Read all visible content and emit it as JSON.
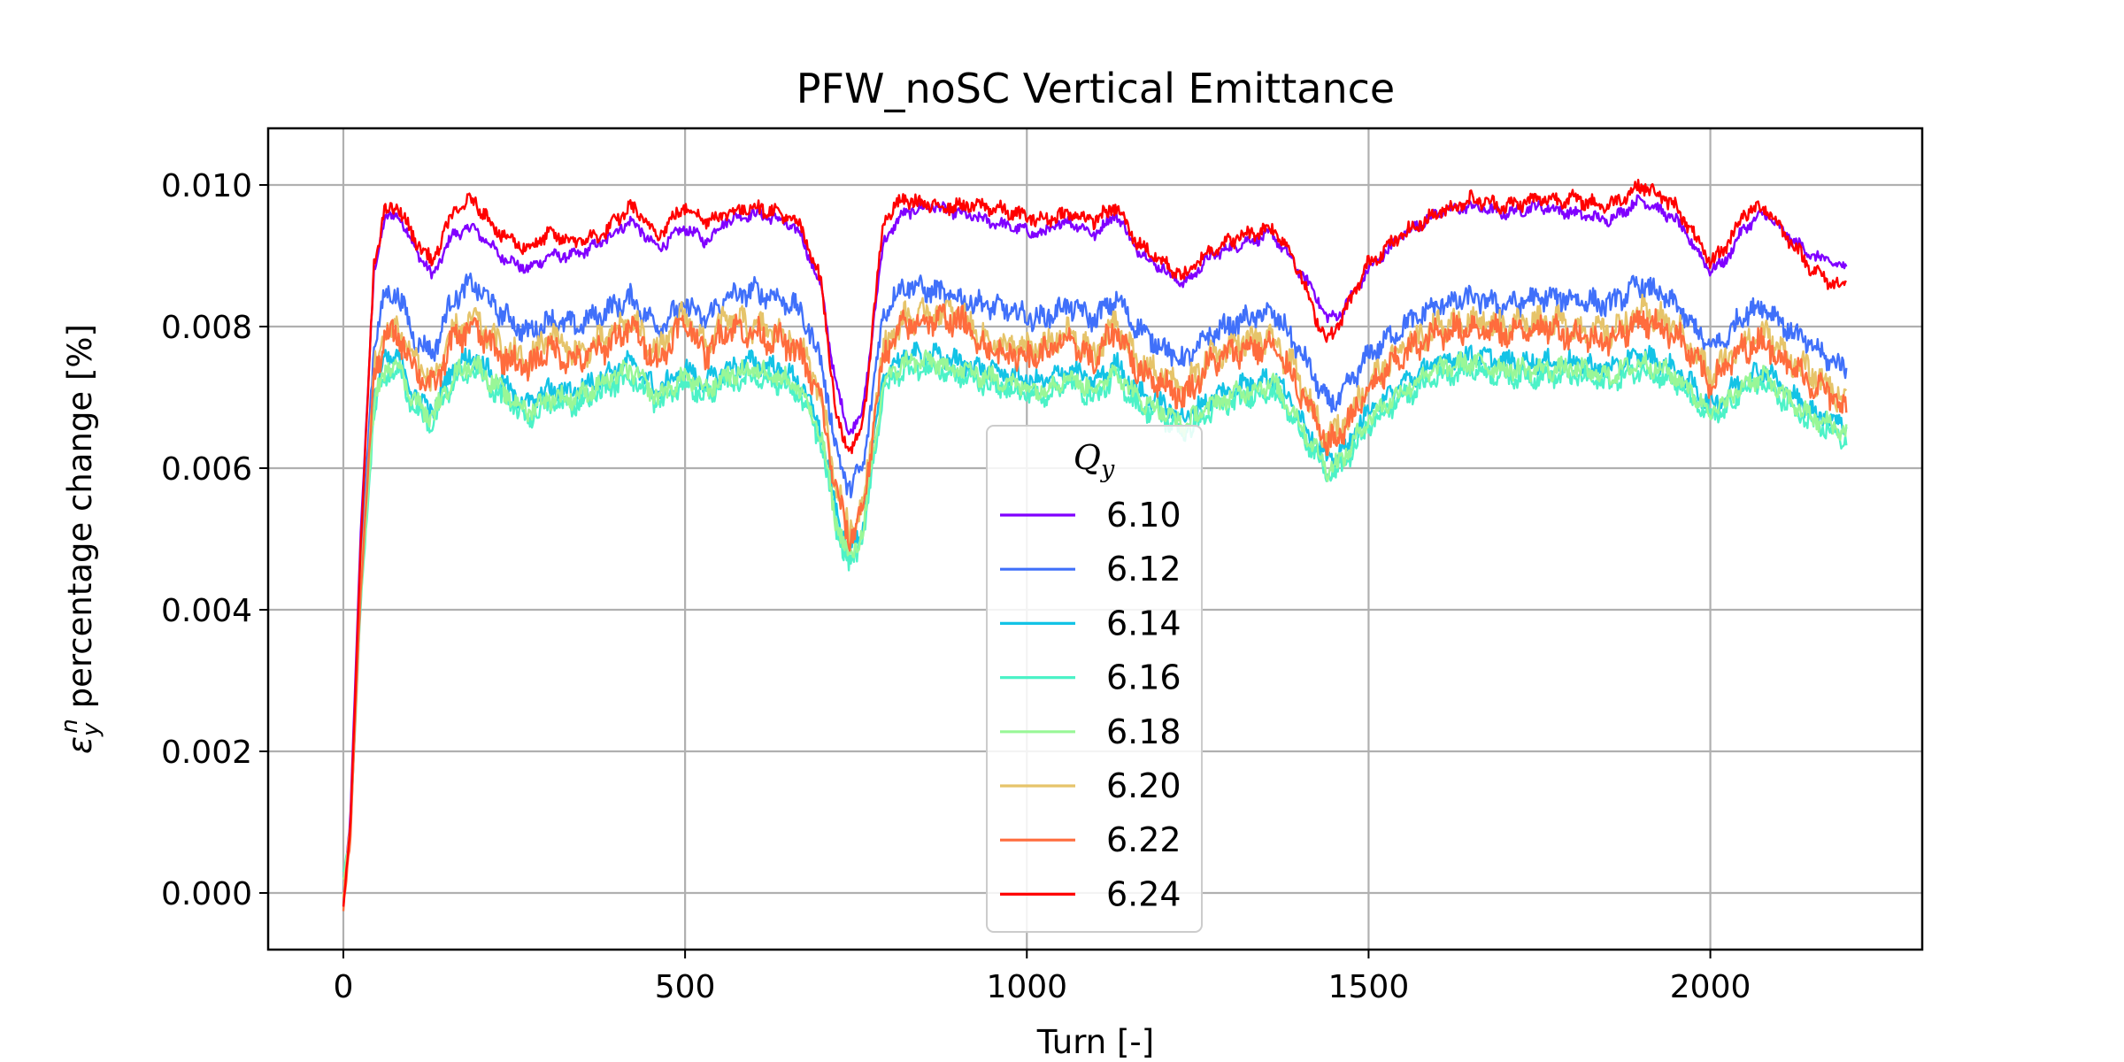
{
  "chart_data": {
    "type": "line",
    "title": "PFW_noSC Vertical Emittance",
    "xlabel": "Turn [-]",
    "ylabel_symbol": "ε",
    "ylabel_sub": "y",
    "ylabel_sup": "n",
    "ylabel_text": " percentage change [%]",
    "xlim": [
      -110,
      2310
    ],
    "ylim": [
      -0.0008,
      0.0108
    ],
    "xticks": [
      0,
      500,
      1000,
      1500,
      2000
    ],
    "xtick_labels": [
      "0",
      "500",
      "1000",
      "1500",
      "2000"
    ],
    "yticks": [
      0.0,
      0.002,
      0.004,
      0.006,
      0.008,
      0.01
    ],
    "ytick_labels": [
      "0.000",
      "0.002",
      "0.004",
      "0.006",
      "0.008",
      "0.010"
    ],
    "grid": true,
    "legend": {
      "title": "Q",
      "title_sub": "y",
      "placement": "lower-center"
    },
    "series": [
      {
        "name": "6.10",
        "color": "#8000ff",
        "noise": 0.00014,
        "x": [
          0,
          10,
          25,
          45,
          60,
          80,
          100,
          130,
          160,
          190,
          230,
          270,
          300,
          340,
          380,
          420,
          460,
          500,
          530,
          560,
          600,
          640,
          670,
          700,
          720,
          740,
          760,
          790,
          820,
          860,
          900,
          940,
          980,
          1020,
          1060,
          1100,
          1130,
          1160,
          1200,
          1230,
          1270,
          1320,
          1360,
          1390,
          1420,
          1440,
          1460,
          1500,
          1550,
          1600,
          1650,
          1700,
          1750,
          1800,
          1850,
          1900,
          1950,
          2000,
          2020,
          2050,
          2080,
          2110,
          2150,
          2180,
          2200
        ],
        "y": [
          0,
          0.001,
          0.005,
          0.0088,
          0.0095,
          0.0096,
          0.0092,
          0.0087,
          0.0093,
          0.0094,
          0.009,
          0.0088,
          0.009,
          0.009,
          0.0092,
          0.0095,
          0.0091,
          0.0094,
          0.0092,
          0.0095,
          0.0096,
          0.0095,
          0.0093,
          0.0085,
          0.0072,
          0.0065,
          0.0068,
          0.0092,
          0.0096,
          0.0097,
          0.0096,
          0.0095,
          0.0094,
          0.0093,
          0.0095,
          0.0093,
          0.0096,
          0.0091,
          0.0088,
          0.0086,
          0.009,
          0.0092,
          0.0093,
          0.0089,
          0.0085,
          0.0081,
          0.0082,
          0.0088,
          0.0093,
          0.0096,
          0.0097,
          0.0096,
          0.0097,
          0.0096,
          0.0095,
          0.0098,
          0.0095,
          0.0088,
          0.0089,
          0.0094,
          0.0096,
          0.0093,
          0.009,
          0.0089,
          0.0088
        ]
      },
      {
        "name": "6.12",
        "color": "#4070fa",
        "noise": 0.00028,
        "x": [
          0,
          10,
          25,
          45,
          60,
          80,
          100,
          130,
          160,
          190,
          230,
          270,
          300,
          340,
          380,
          420,
          460,
          500,
          530,
          560,
          600,
          640,
          670,
          700,
          720,
          740,
          760,
          790,
          820,
          860,
          900,
          940,
          980,
          1020,
          1060,
          1100,
          1130,
          1160,
          1200,
          1230,
          1270,
          1320,
          1360,
          1390,
          1420,
          1440,
          1460,
          1500,
          1550,
          1600,
          1650,
          1700,
          1750,
          1800,
          1850,
          1900,
          1950,
          2000,
          2020,
          2050,
          2080,
          2110,
          2150,
          2180,
          2200
        ],
        "y": [
          0,
          0.0009,
          0.0045,
          0.0078,
          0.0084,
          0.0085,
          0.0079,
          0.0076,
          0.0084,
          0.0086,
          0.0082,
          0.0079,
          0.0081,
          0.008,
          0.0082,
          0.0084,
          0.008,
          0.0083,
          0.0081,
          0.0084,
          0.0085,
          0.0084,
          0.0082,
          0.0075,
          0.0063,
          0.0057,
          0.006,
          0.0082,
          0.0086,
          0.0085,
          0.0084,
          0.0083,
          0.0082,
          0.0081,
          0.0083,
          0.0081,
          0.0084,
          0.008,
          0.0077,
          0.0075,
          0.0079,
          0.0081,
          0.0082,
          0.0078,
          0.0073,
          0.0069,
          0.007,
          0.0076,
          0.008,
          0.0083,
          0.0084,
          0.0083,
          0.0084,
          0.0084,
          0.0083,
          0.0086,
          0.0083,
          0.0077,
          0.0078,
          0.0082,
          0.0083,
          0.008,
          0.0077,
          0.0075,
          0.0074
        ]
      },
      {
        "name": "6.14",
        "color": "#13c3e6",
        "noise": 0.00025,
        "x": [
          0,
          10,
          25,
          45,
          60,
          80,
          100,
          130,
          160,
          190,
          230,
          270,
          300,
          340,
          380,
          420,
          460,
          500,
          530,
          560,
          600,
          640,
          670,
          700,
          720,
          740,
          760,
          790,
          820,
          860,
          900,
          940,
          980,
          1020,
          1060,
          1100,
          1130,
          1160,
          1200,
          1230,
          1270,
          1320,
          1360,
          1390,
          1420,
          1440,
          1460,
          1500,
          1550,
          1600,
          1650,
          1700,
          1750,
          1800,
          1850,
          1900,
          1950,
          2000,
          2020,
          2050,
          2080,
          2110,
          2150,
          2180,
          2200
        ],
        "y": [
          0.0002,
          0.0008,
          0.0042,
          0.007,
          0.0075,
          0.0076,
          0.0071,
          0.0068,
          0.0074,
          0.0076,
          0.0072,
          0.0069,
          0.0071,
          0.0071,
          0.0073,
          0.0075,
          0.0071,
          0.0074,
          0.0072,
          0.0074,
          0.0075,
          0.0074,
          0.0072,
          0.0065,
          0.0054,
          0.0048,
          0.0052,
          0.0073,
          0.0076,
          0.0076,
          0.0075,
          0.0074,
          0.0073,
          0.0072,
          0.0074,
          0.0072,
          0.0075,
          0.0071,
          0.0069,
          0.0067,
          0.007,
          0.0072,
          0.0073,
          0.0069,
          0.0064,
          0.0061,
          0.0062,
          0.0068,
          0.0072,
          0.0075,
          0.0076,
          0.0075,
          0.0075,
          0.0075,
          0.0074,
          0.0076,
          0.0074,
          0.0069,
          0.007,
          0.0073,
          0.0074,
          0.0071,
          0.0068,
          0.0067,
          0.0066
        ]
      },
      {
        "name": "6.16",
        "color": "#4cf2c7",
        "noise": 0.00025,
        "x": [
          0,
          10,
          25,
          45,
          60,
          80,
          100,
          130,
          160,
          190,
          230,
          270,
          300,
          340,
          380,
          420,
          460,
          500,
          530,
          560,
          600,
          640,
          670,
          700,
          720,
          740,
          760,
          790,
          820,
          860,
          900,
          940,
          980,
          1020,
          1060,
          1100,
          1130,
          1160,
          1200,
          1230,
          1270,
          1320,
          1360,
          1390,
          1420,
          1440,
          1460,
          1500,
          1550,
          1600,
          1650,
          1700,
          1750,
          1800,
          1850,
          1900,
          1950,
          2000,
          2020,
          2050,
          2080,
          2110,
          2150,
          2180,
          2200
        ],
        "y": [
          0.0003,
          0.0008,
          0.004,
          0.0068,
          0.0073,
          0.0074,
          0.0069,
          0.0066,
          0.0072,
          0.0074,
          0.007,
          0.0067,
          0.0069,
          0.0069,
          0.0071,
          0.0073,
          0.0069,
          0.0072,
          0.007,
          0.0072,
          0.0073,
          0.0072,
          0.007,
          0.0063,
          0.0052,
          0.0046,
          0.005,
          0.0071,
          0.0074,
          0.0074,
          0.0073,
          0.0072,
          0.0071,
          0.007,
          0.0072,
          0.007,
          0.0073,
          0.0069,
          0.0067,
          0.0065,
          0.0068,
          0.007,
          0.0071,
          0.0067,
          0.0062,
          0.0059,
          0.006,
          0.0066,
          0.007,
          0.0073,
          0.0074,
          0.0073,
          0.0073,
          0.0073,
          0.0072,
          0.0074,
          0.0072,
          0.0067,
          0.0068,
          0.0071,
          0.0072,
          0.0069,
          0.0066,
          0.0065,
          0.0064
        ]
      },
      {
        "name": "6.18",
        "color": "#99f797",
        "noise": 0.00025,
        "x": [
          0,
          10,
          25,
          45,
          60,
          80,
          100,
          130,
          160,
          190,
          230,
          270,
          300,
          340,
          380,
          420,
          460,
          500,
          530,
          560,
          600,
          640,
          670,
          700,
          720,
          740,
          760,
          790,
          820,
          860,
          900,
          940,
          980,
          1020,
          1060,
          1100,
          1130,
          1160,
          1200,
          1230,
          1270,
          1320,
          1360,
          1390,
          1420,
          1440,
          1460,
          1500,
          1550,
          1600,
          1650,
          1700,
          1750,
          1800,
          1850,
          1900,
          1950,
          2000,
          2020,
          2050,
          2080,
          2110,
          2150,
          2180,
          2200
        ],
        "y": [
          0.0002,
          0.0008,
          0.0041,
          0.0069,
          0.0074,
          0.0075,
          0.007,
          0.0067,
          0.0073,
          0.0075,
          0.0071,
          0.0068,
          0.007,
          0.007,
          0.0072,
          0.0074,
          0.007,
          0.0073,
          0.0071,
          0.0073,
          0.0074,
          0.0073,
          0.0071,
          0.0064,
          0.0053,
          0.0047,
          0.0051,
          0.0072,
          0.0075,
          0.0075,
          0.0074,
          0.0073,
          0.0072,
          0.0071,
          0.0073,
          0.0071,
          0.0074,
          0.007,
          0.0068,
          0.0066,
          0.0069,
          0.0071,
          0.0072,
          0.0068,
          0.0063,
          0.006,
          0.0061,
          0.0067,
          0.0071,
          0.0074,
          0.0075,
          0.0074,
          0.0074,
          0.0074,
          0.0073,
          0.0075,
          0.0073,
          0.0068,
          0.0069,
          0.0072,
          0.0073,
          0.007,
          0.0067,
          0.0066,
          0.0065
        ]
      },
      {
        "name": "6.20",
        "color": "#e6c46a",
        "noise": 0.00035,
        "x": [
          0,
          10,
          25,
          45,
          60,
          80,
          100,
          130,
          160,
          190,
          230,
          270,
          300,
          340,
          380,
          420,
          460,
          500,
          530,
          560,
          600,
          640,
          670,
          700,
          720,
          740,
          760,
          790,
          820,
          860,
          900,
          940,
          980,
          1020,
          1060,
          1100,
          1130,
          1160,
          1200,
          1230,
          1270,
          1320,
          1360,
          1390,
          1420,
          1440,
          1460,
          1500,
          1550,
          1600,
          1650,
          1700,
          1750,
          1800,
          1850,
          1900,
          1950,
          2000,
          2020,
          2050,
          2080,
          2110,
          2150,
          2180,
          2200
        ],
        "y": [
          0,
          0.0009,
          0.0043,
          0.0074,
          0.0079,
          0.008,
          0.0076,
          0.0072,
          0.0079,
          0.0081,
          0.0077,
          0.0075,
          0.0079,
          0.0076,
          0.0078,
          0.0081,
          0.0076,
          0.0082,
          0.0077,
          0.0081,
          0.008,
          0.0079,
          0.0077,
          0.007,
          0.0058,
          0.0051,
          0.0055,
          0.0077,
          0.0081,
          0.0082,
          0.0082,
          0.0078,
          0.0077,
          0.0077,
          0.0079,
          0.0076,
          0.0081,
          0.0075,
          0.0073,
          0.0071,
          0.0076,
          0.0078,
          0.0078,
          0.0074,
          0.0068,
          0.0064,
          0.0066,
          0.0072,
          0.0077,
          0.008,
          0.0081,
          0.008,
          0.0081,
          0.008,
          0.0079,
          0.0082,
          0.008,
          0.0073,
          0.0075,
          0.0078,
          0.0079,
          0.0076,
          0.0073,
          0.0071,
          0.0069
        ]
      },
      {
        "name": "6.22",
        "color": "#ff6c3d",
        "noise": 0.00035,
        "x": [
          0,
          10,
          25,
          45,
          60,
          80,
          100,
          130,
          160,
          190,
          230,
          270,
          300,
          340,
          380,
          420,
          460,
          500,
          530,
          560,
          600,
          640,
          670,
          700,
          720,
          740,
          760,
          790,
          820,
          860,
          900,
          940,
          980,
          1020,
          1060,
          1100,
          1130,
          1160,
          1200,
          1230,
          1270,
          1320,
          1360,
          1390,
          1420,
          1440,
          1460,
          1500,
          1550,
          1600,
          1650,
          1700,
          1750,
          1800,
          1850,
          1900,
          1950,
          2000,
          2020,
          2050,
          2080,
          2110,
          2150,
          2180,
          2200
        ],
        "y": [
          -0.0002,
          0.0007,
          0.0042,
          0.0073,
          0.0078,
          0.0079,
          0.0075,
          0.0071,
          0.0078,
          0.008,
          0.0076,
          0.0074,
          0.0077,
          0.0075,
          0.0077,
          0.008,
          0.0075,
          0.0081,
          0.0076,
          0.008,
          0.0079,
          0.0078,
          0.0076,
          0.0069,
          0.0057,
          0.005,
          0.0054,
          0.0076,
          0.008,
          0.0081,
          0.0081,
          0.0077,
          0.0076,
          0.0076,
          0.0078,
          0.0075,
          0.008,
          0.0074,
          0.0072,
          0.007,
          0.0075,
          0.0077,
          0.0077,
          0.0073,
          0.0067,
          0.0063,
          0.0065,
          0.0071,
          0.0076,
          0.0079,
          0.008,
          0.0079,
          0.008,
          0.0079,
          0.0078,
          0.0081,
          0.0079,
          0.0072,
          0.0074,
          0.0077,
          0.0078,
          0.0075,
          0.0072,
          0.007,
          0.0068
        ]
      },
      {
        "name": "6.24",
        "color": "#ff0000",
        "noise": 0.00018,
        "x": [
          0,
          10,
          25,
          45,
          60,
          80,
          100,
          130,
          160,
          190,
          230,
          270,
          300,
          340,
          380,
          420,
          460,
          500,
          530,
          560,
          600,
          640,
          670,
          700,
          720,
          740,
          760,
          790,
          820,
          860,
          900,
          940,
          980,
          1020,
          1060,
          1100,
          1130,
          1160,
          1200,
          1230,
          1270,
          1320,
          1360,
          1390,
          1420,
          1440,
          1460,
          1500,
          1550,
          1600,
          1650,
          1700,
          1750,
          1800,
          1850,
          1900,
          1950,
          2000,
          2020,
          2050,
          2080,
          2110,
          2150,
          2180,
          2200
        ],
        "y": [
          -0.0002,
          0.0009,
          0.0048,
          0.0089,
          0.0096,
          0.0097,
          0.0093,
          0.0089,
          0.0096,
          0.0098,
          0.0093,
          0.0091,
          0.0093,
          0.0092,
          0.0093,
          0.0097,
          0.0093,
          0.0097,
          0.0095,
          0.0096,
          0.0097,
          0.0096,
          0.0094,
          0.0086,
          0.0068,
          0.0062,
          0.0066,
          0.0095,
          0.0098,
          0.0097,
          0.0097,
          0.0097,
          0.0096,
          0.0095,
          0.0096,
          0.0095,
          0.0097,
          0.0092,
          0.0089,
          0.0087,
          0.0091,
          0.0093,
          0.0094,
          0.009,
          0.0082,
          0.0078,
          0.0081,
          0.0089,
          0.0093,
          0.0096,
          0.0098,
          0.0097,
          0.0098,
          0.0098,
          0.0097,
          0.01,
          0.0097,
          0.0089,
          0.0091,
          0.0096,
          0.0097,
          0.0093,
          0.0088,
          0.0086,
          0.0086
        ]
      }
    ]
  }
}
